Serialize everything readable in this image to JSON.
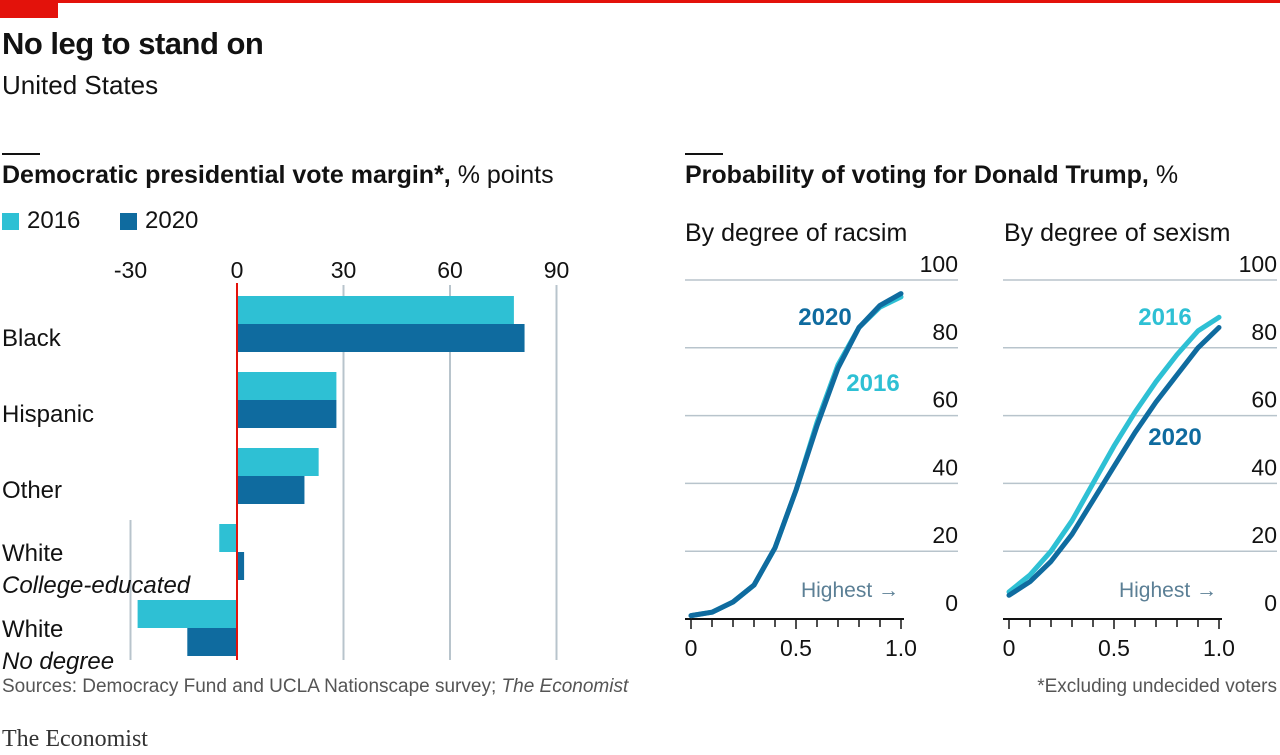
{
  "title": "No leg to stand on",
  "subtitle": "United States",
  "source_prefix": "Sources: Democracy Fund and UCLA Nationscape survey; ",
  "source_suffix": "The Economist",
  "footnote": "*Excluding undecided voters",
  "brand": "The Economist",
  "colors": {
    "accent": "#e3120b",
    "series_2016": "#2ec0d4",
    "series_2020": "#0f6b9f",
    "grid": "#b8c4cc",
    "zero_line": "#e3120b"
  },
  "left_panel": {
    "title_bold": "Democratic presidential vote margin*,",
    "title_rest": " % points",
    "legend": [
      "2016",
      "2020"
    ]
  },
  "right_panel": {
    "title_bold": "Probability of voting for Donald Trump,",
    "title_rest": " %",
    "highest_label": "Highest →"
  },
  "chart_data": [
    {
      "type": "bar",
      "orientation": "horizontal",
      "title": "Democratic presidential vote margin*, % points",
      "categories": [
        {
          "line1": "Black",
          "line2": ""
        },
        {
          "line1": "Hispanic",
          "line2": ""
        },
        {
          "line1": "Other",
          "line2": ""
        },
        {
          "line1": "White",
          "line2": "College-educated"
        },
        {
          "line1": "White",
          "line2": "No degree"
        }
      ],
      "series": [
        {
          "name": "2016",
          "values": [
            78,
            28,
            23,
            -5,
            -28
          ]
        },
        {
          "name": "2020",
          "values": [
            81,
            28,
            19,
            2,
            -14
          ]
        }
      ],
      "xlim": [
        -30,
        90
      ],
      "xticks": [
        "-30",
        "0",
        "30",
        "60",
        "90"
      ],
      "xtick_values": [
        -30,
        0,
        30,
        60,
        90
      ],
      "grid": true,
      "legend_position": "top-left"
    },
    {
      "type": "line",
      "title": "By degree of racsim",
      "x": [
        0,
        0.1,
        0.2,
        0.3,
        0.4,
        0.5,
        0.6,
        0.7,
        0.8,
        0.9,
        1.0
      ],
      "series": [
        {
          "name": "2016",
          "values": [
            1,
            2,
            5,
            10,
            21,
            38,
            58,
            75,
            86,
            92,
            95
          ]
        },
        {
          "name": "2020",
          "values": [
            1,
            2,
            5,
            10,
            21,
            38,
            57,
            74,
            86,
            92.5,
            96
          ]
        }
      ],
      "xlim": [
        0,
        1
      ],
      "ylim": [
        0,
        100
      ],
      "xticks": [
        "0",
        "0.5",
        "1.0"
      ],
      "yticks": [
        "0",
        "20",
        "40",
        "60",
        "80",
        "100"
      ],
      "grid": true
    },
    {
      "type": "line",
      "title": "By degree of sexism",
      "x": [
        0,
        0.1,
        0.2,
        0.3,
        0.4,
        0.5,
        0.6,
        0.7,
        0.8,
        0.9,
        1.0
      ],
      "series": [
        {
          "name": "2016",
          "values": [
            8,
            13,
            20,
            29,
            40,
            51,
            61,
            70,
            78,
            85,
            89
          ]
        },
        {
          "name": "2020",
          "values": [
            7,
            11,
            17,
            25,
            35,
            45,
            55,
            64,
            72,
            80,
            86
          ]
        }
      ],
      "xlim": [
        0,
        1
      ],
      "ylim": [
        0,
        100
      ],
      "xticks": [
        "0",
        "0.5",
        "1.0"
      ],
      "yticks": [
        "0",
        "20",
        "40",
        "60",
        "80",
        "100"
      ],
      "grid": true
    }
  ]
}
